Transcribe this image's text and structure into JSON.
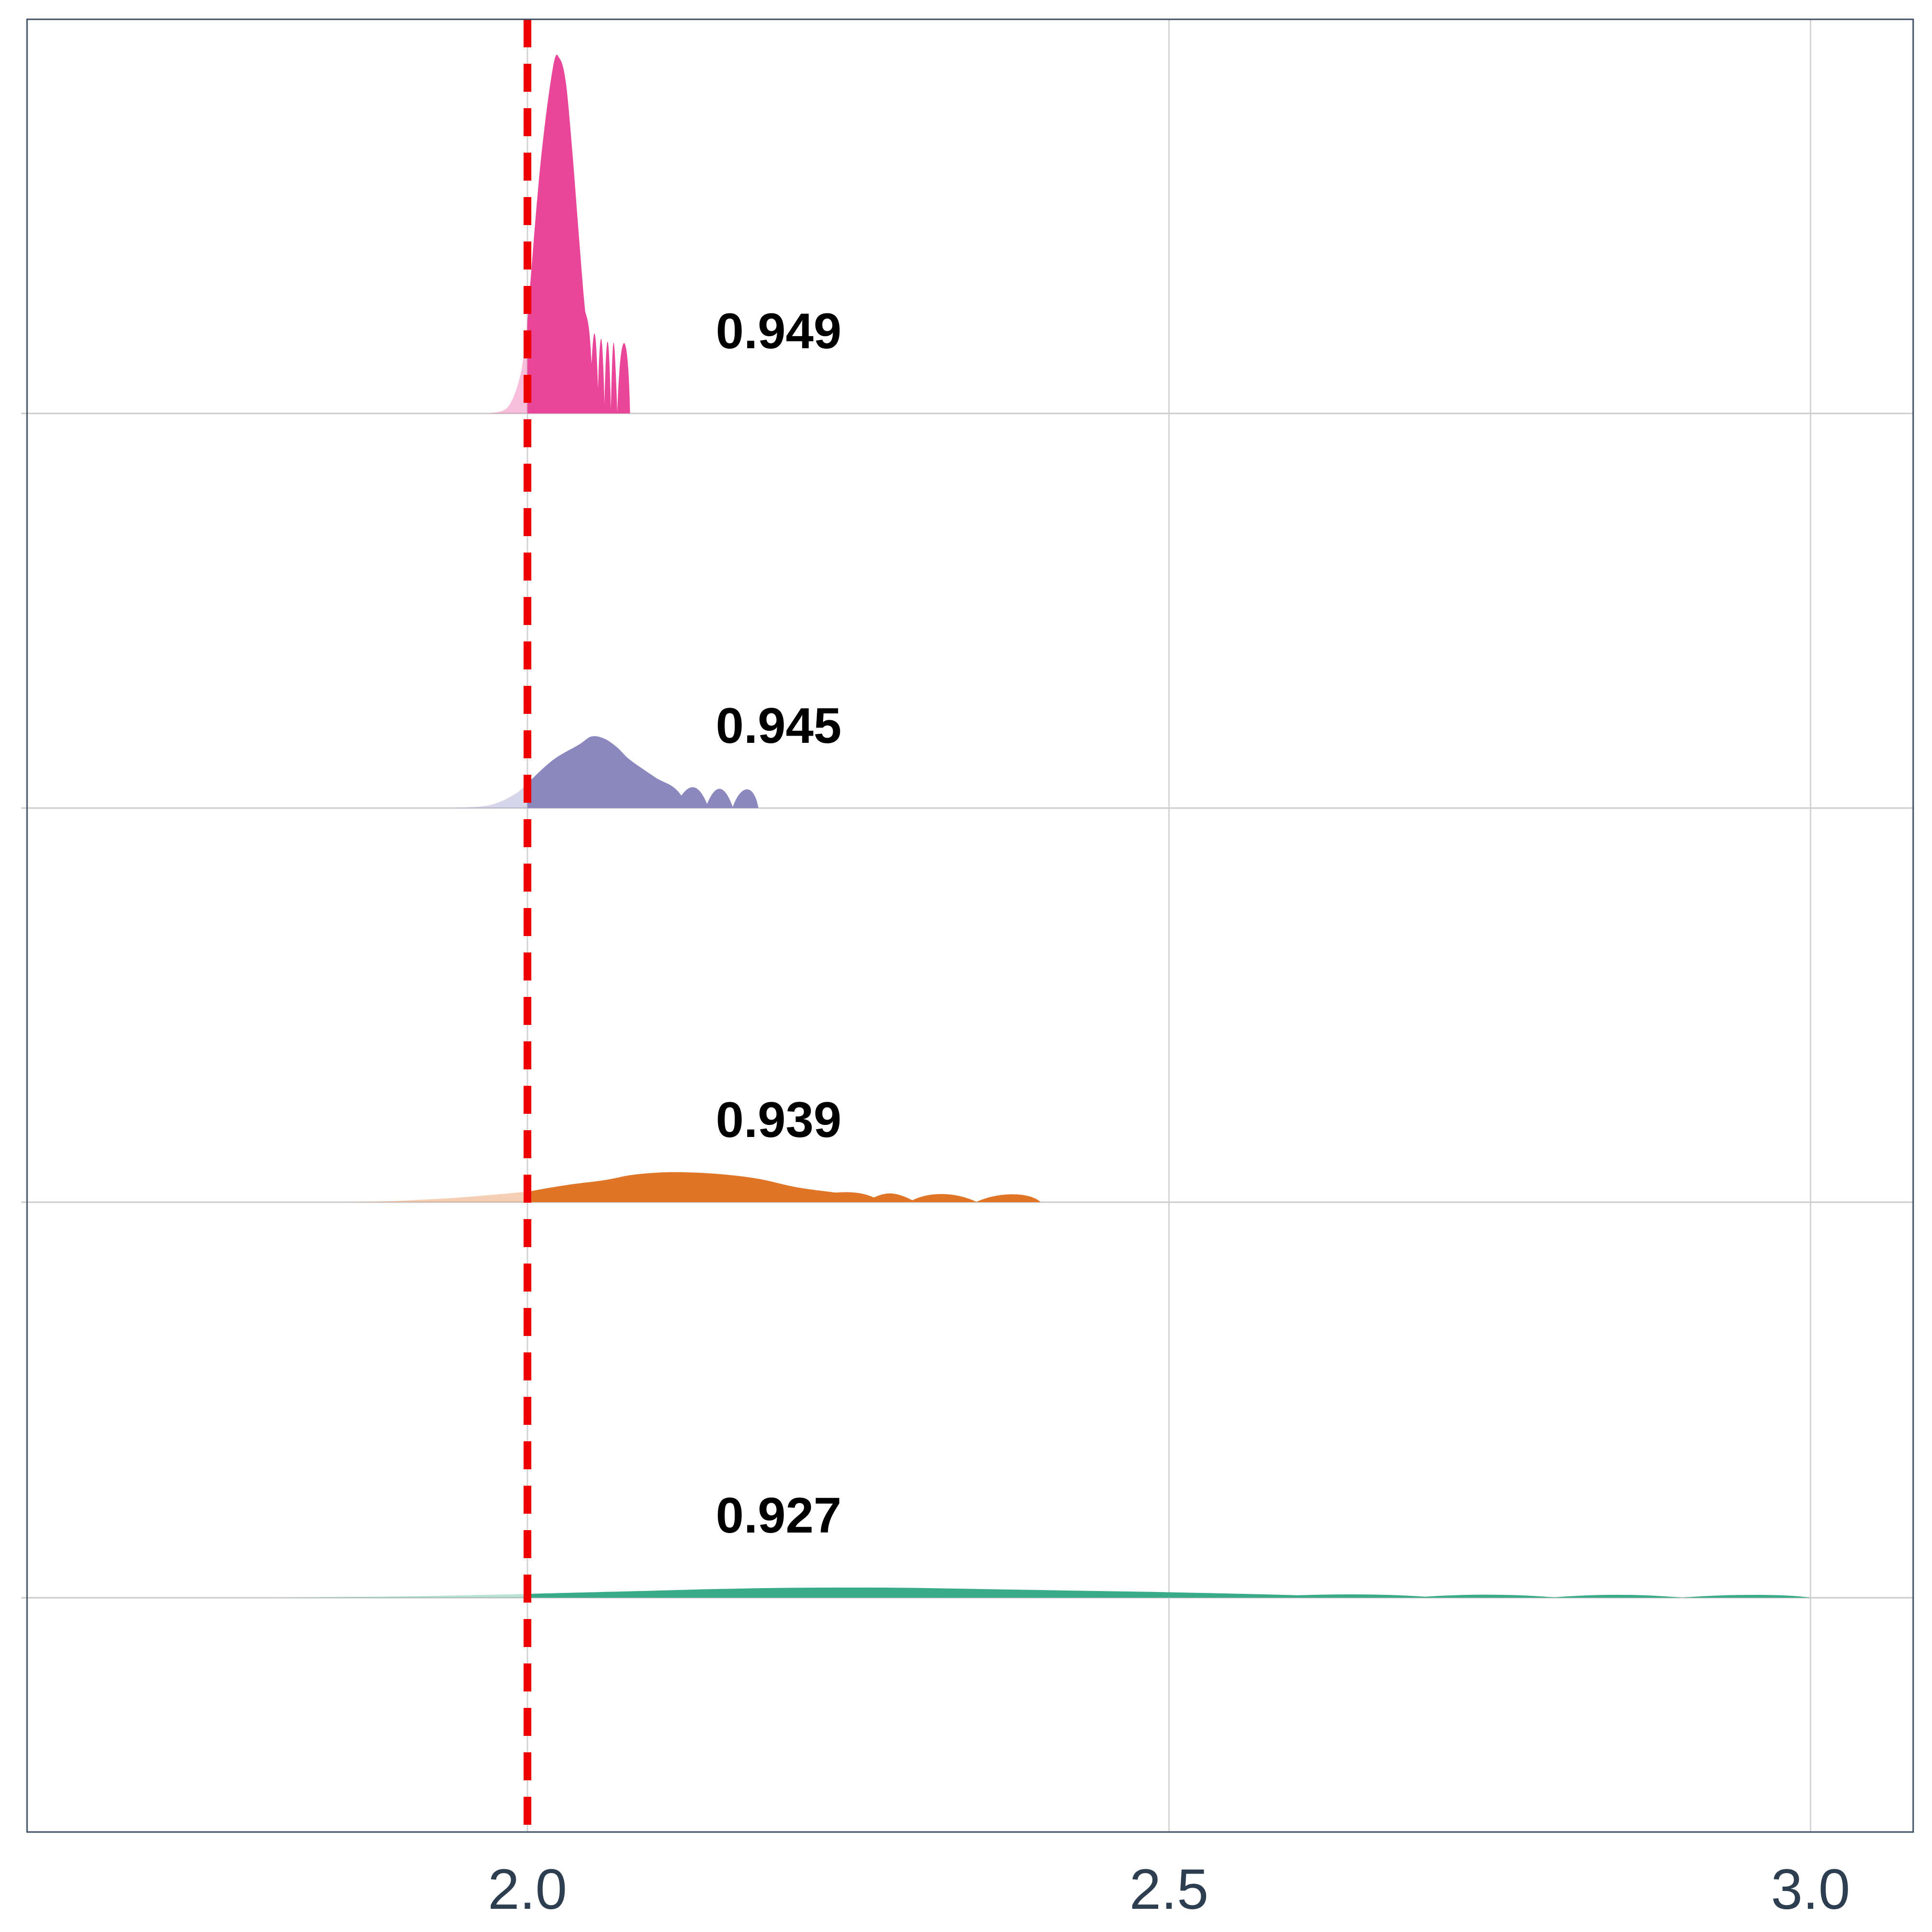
{
  "chart_data": {
    "type": "area",
    "subtype": "ridgeline-density",
    "title": "",
    "xlabel": "",
    "ylabel": "",
    "xlim": [
      1.61,
      3.08
    ],
    "x_ticks": [
      2.0,
      2.5,
      3.0
    ],
    "x_tick_labels": [
      "2.0",
      "2.5",
      "3.0"
    ],
    "grid": true,
    "legend": "none",
    "reference_line": {
      "x": 2.0,
      "color": "#ee0000",
      "style": "dashed"
    },
    "series": [
      {
        "label": "0.927",
        "color": "#3aab88",
        "shade_below_x": 2.0,
        "x": [
          1.8,
          1.9,
          1.95,
          2.0,
          2.1,
          2.15,
          2.2,
          2.25,
          2.3,
          2.35,
          2.4,
          2.45,
          2.5,
          2.6,
          2.7,
          2.8,
          2.9,
          3.0
        ],
        "density": [
          0.0,
          0.05,
          0.09,
          0.14,
          0.26,
          0.32,
          0.36,
          0.37,
          0.36,
          0.32,
          0.28,
          0.24,
          0.2,
          0.09,
          0.04,
          0.015,
          0.005,
          0.0
        ]
      },
      {
        "label": "0.939",
        "color": "#e07528",
        "shade_below_x": 2.0,
        "x": [
          1.86,
          1.9,
          1.95,
          2.0,
          2.03,
          2.06,
          2.08,
          2.1,
          2.12,
          2.15,
          2.18,
          2.21,
          2.24,
          2.27,
          2.3,
          2.35,
          2.4
        ],
        "density": [
          0.0,
          0.05,
          0.18,
          0.38,
          0.62,
          0.8,
          0.98,
          1.07,
          1.09,
          1.02,
          0.85,
          0.54,
          0.35,
          0.17,
          0.07,
          0.01,
          0.0
        ]
      },
      {
        "label": "0.945",
        "color": "#8b87bf",
        "shade_below_x": 2.0,
        "x": [
          1.94,
          1.97,
          1.99,
          2.0,
          2.02,
          2.04,
          2.05,
          2.06,
          2.07,
          2.08,
          2.1,
          2.12,
          2.14,
          2.16,
          2.18
        ],
        "density": [
          0.0,
          0.1,
          0.5,
          0.9,
          1.75,
          2.3,
          2.6,
          2.52,
          2.2,
          1.75,
          1.1,
          0.45,
          0.15,
          0.04,
          0.0
        ]
      },
      {
        "label": "0.949",
        "color": "#ea4699",
        "shade_below_x": 2.0,
        "x": [
          1.97,
          1.985,
          1.995,
          2.0,
          2.01,
          2.02,
          2.025,
          2.03,
          2.035,
          2.04,
          2.045,
          2.05,
          2.055,
          2.06,
          2.065,
          2.07,
          2.08
        ],
        "density": [
          0.0,
          0.25,
          1.5,
          3.4,
          9.0,
          12.6,
          12.9,
          12.0,
          9.5,
          6.5,
          3.7,
          1.8,
          0.9,
          0.35,
          0.15,
          0.05,
          0.0
        ]
      }
    ]
  }
}
